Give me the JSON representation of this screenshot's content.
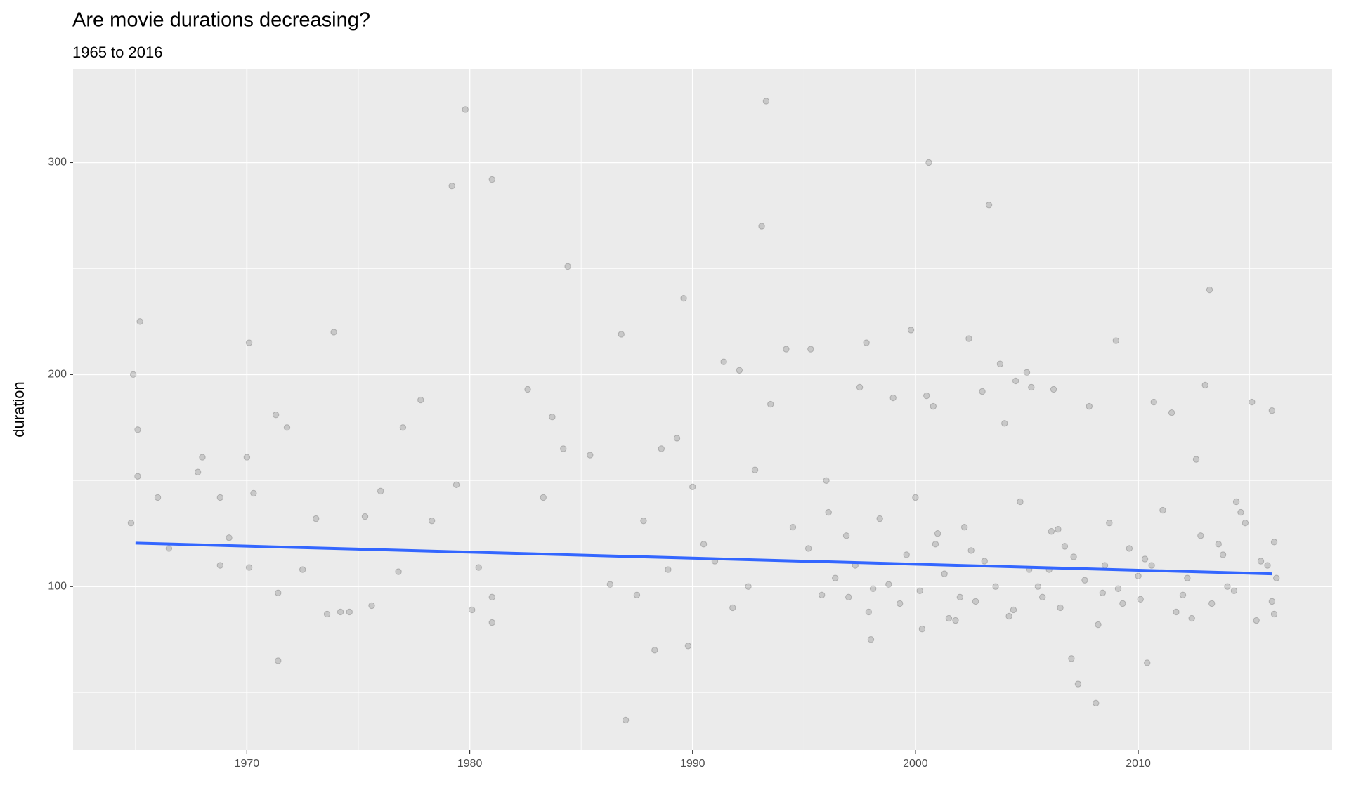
{
  "chart_data": {
    "type": "scatter",
    "title": "Are movie durations decreasing?",
    "subtitle": "1965 to 2016",
    "y_label": "duration",
    "xlim": [
      1962.2,
      2018.7
    ],
    "ylim": [
      22.9,
      344.2
    ],
    "xticks": [
      1970,
      1980,
      1990,
      2000,
      2010
    ],
    "yticks": [
      100,
      200,
      300
    ],
    "xminor": [
      1965,
      1975,
      1985,
      1995,
      2005,
      2015
    ],
    "yminor": [
      50,
      150,
      250
    ],
    "grid": true,
    "color": "#000000",
    "x": [
      1964.8,
      1964.9,
      1965.2,
      1965.1,
      1965.1,
      1966,
      1966.5,
      1967.8,
      1968,
      1968.8,
      1968.8,
      1969.2,
      1970,
      1970.1,
      1970.1,
      1970.3,
      1971.3,
      1971.4,
      1971.4,
      1971.8,
      1972.5,
      1973.1,
      1973.6,
      1973.9,
      1974.2,
      1974.6,
      1975.3,
      1975.6,
      1976,
      1976.8,
      1977,
      1977.8,
      1978.3,
      1979.2,
      1979.4,
      1979.8,
      1980.1,
      1980.4,
      1981,
      1981,
      1981,
      1982.6,
      1983.3,
      1983.7,
      1984.2,
      1984.4,
      1985.4,
      1986.3,
      1986.8,
      1987,
      1987.8,
      1988.3,
      1988.6,
      1989.3,
      1989.6,
      1989.8,
      1990,
      1991,
      1991.4,
      1992.1,
      1992.8,
      1993.1,
      1993.3,
      1993.5,
      1994.2,
      1995.3,
      1996,
      1997,
      1997.5,
      1997.8,
      1998,
      1999,
      1999.8,
      2000,
      2000.5,
      2000.6,
      2000.8,
      2001,
      2001.5,
      2002,
      2002.4,
      2003,
      2003.3,
      2003.8,
      2004,
      2004.5,
      2005,
      2005.2,
      2005.5,
      2006,
      2006.2,
      2006.7,
      2007,
      2007.3,
      2007.8,
      2008.1,
      2008.5,
      2009,
      2009.3,
      2010,
      2010.4,
      2010.7,
      2011.5,
      2012,
      2012.6,
      2013,
      2013.2,
      2013.6,
      2014,
      2014.6,
      2015.1,
      2015.5,
      2016,
      2016.1,
      2016.2,
      1995.2,
      1995.8,
      1996.4,
      1996.9,
      1997.3,
      1997.9,
      1998.4,
      1998.8,
      1999.3,
      1999.6,
      2000.2,
      2000.9,
      2001.3,
      2001.8,
      2002.2,
      2002.7,
      2003.1,
      2003.6,
      2004.2,
      2004.7,
      2005.1,
      2005.7,
      2006.1,
      2006.5,
      2007.1,
      2007.6,
      2008.2,
      2008.7,
      2009.1,
      2009.6,
      2010.1,
      2010.6,
      2011.1,
      2011.7,
      2012.2,
      2012.8,
      2013.3,
      2013.8,
      2014.3,
      2014.8,
      2015.3,
      2015.8,
      2016.1,
      1996.1,
      1998.1,
      2000.3,
      2002.5,
      2004.4,
      2006.4,
      2008.4,
      2010.3,
      2012.4,
      2014.4,
      2016,
      1987.5,
      1988.9,
      1990.5,
      1991.8,
      1992.5,
      1994.5
    ],
    "y": [
      130,
      200,
      225,
      174,
      152,
      142,
      118,
      154,
      161,
      142,
      110,
      123,
      161,
      215,
      109,
      144,
      181,
      97,
      65,
      175,
      108,
      132,
      87,
      220,
      88,
      88,
      133,
      91,
      145,
      107,
      175,
      188,
      131,
      289,
      148,
      325,
      89,
      109,
      292,
      95,
      83,
      193,
      142,
      180,
      165,
      251,
      162,
      101,
      219,
      37,
      131,
      70,
      165,
      170,
      236,
      72,
      147,
      112,
      206,
      202,
      155,
      270,
      329,
      186,
      212,
      212,
      150,
      95,
      194,
      215,
      75,
      189,
      221,
      142,
      190,
      300,
      185,
      125,
      85,
      95,
      217,
      192,
      280,
      205,
      177,
      197,
      201,
      194,
      100,
      108,
      193,
      119,
      66,
      54,
      185,
      45,
      110,
      216,
      92,
      105,
      64,
      187,
      182,
      96,
      160,
      195,
      240,
      120,
      100,
      135,
      187,
      112,
      183,
      87,
      104,
      118,
      96,
      104,
      124,
      110,
      88,
      132,
      101,
      92,
      115,
      98,
      120,
      106,
      84,
      128,
      93,
      112,
      100,
      86,
      140,
      108,
      95,
      126,
      90,
      114,
      103,
      82,
      130,
      99,
      118,
      94,
      110,
      136,
      88,
      104,
      124,
      92,
      115,
      98,
      130,
      84,
      110,
      121,
      135,
      99,
      80,
      117,
      89,
      127,
      97,
      113,
      85,
      140,
      93,
      96,
      108,
      120,
      90,
      100,
      128
    ],
    "trend": {
      "color": "#3366ff",
      "x": [
        1965,
        2016
      ],
      "y": [
        120.5,
        106
      ]
    }
  }
}
